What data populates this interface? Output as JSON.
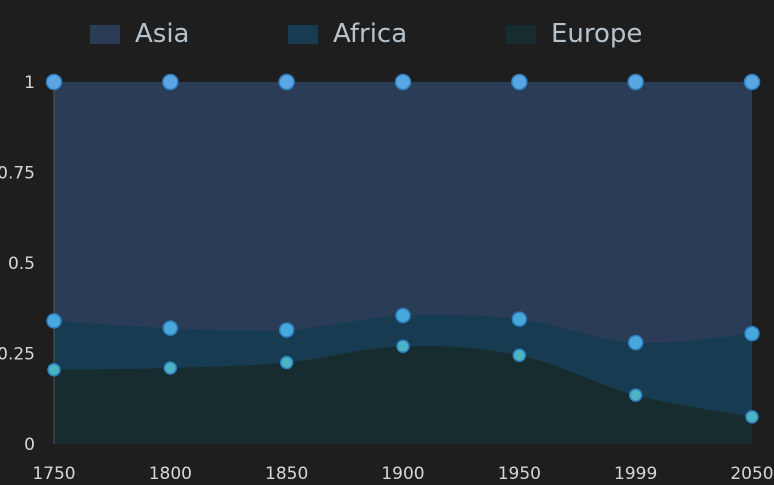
{
  "chart_data": {
    "type": "area",
    "stacked": true,
    "normalized": true,
    "x": [
      "1750",
      "1800",
      "1850",
      "1900",
      "1950",
      "1999",
      "2050"
    ],
    "series": [
      {
        "name": "Europe",
        "values": [
          0.205,
          0.21,
          0.225,
          0.27,
          0.245,
          0.135,
          0.075
        ]
      },
      {
        "name": "Africa",
        "values": [
          0.34,
          0.32,
          0.315,
          0.355,
          0.345,
          0.28,
          0.305
        ]
      },
      {
        "name": "Asia",
        "values": [
          1,
          1,
          1,
          1,
          1,
          1,
          1
        ]
      }
    ],
    "series_values_are_cumulative": true,
    "yticks": [
      "0",
      "0.25",
      "0.5",
      "0.75",
      "1"
    ],
    "ylim": [
      0,
      1
    ],
    "legend": {
      "position": "top",
      "order": [
        "Asia",
        "Africa",
        "Europe"
      ]
    },
    "grid": false,
    "colors": {
      "Asia": "#2b3d56",
      "Africa": "#173c52",
      "Europe": "#172c2e",
      "asia_marker": "#5aa6e2",
      "africa_marker": "#47a8dc",
      "europe_marker": "#4cb3c0",
      "background": "#1e1e1e"
    }
  }
}
